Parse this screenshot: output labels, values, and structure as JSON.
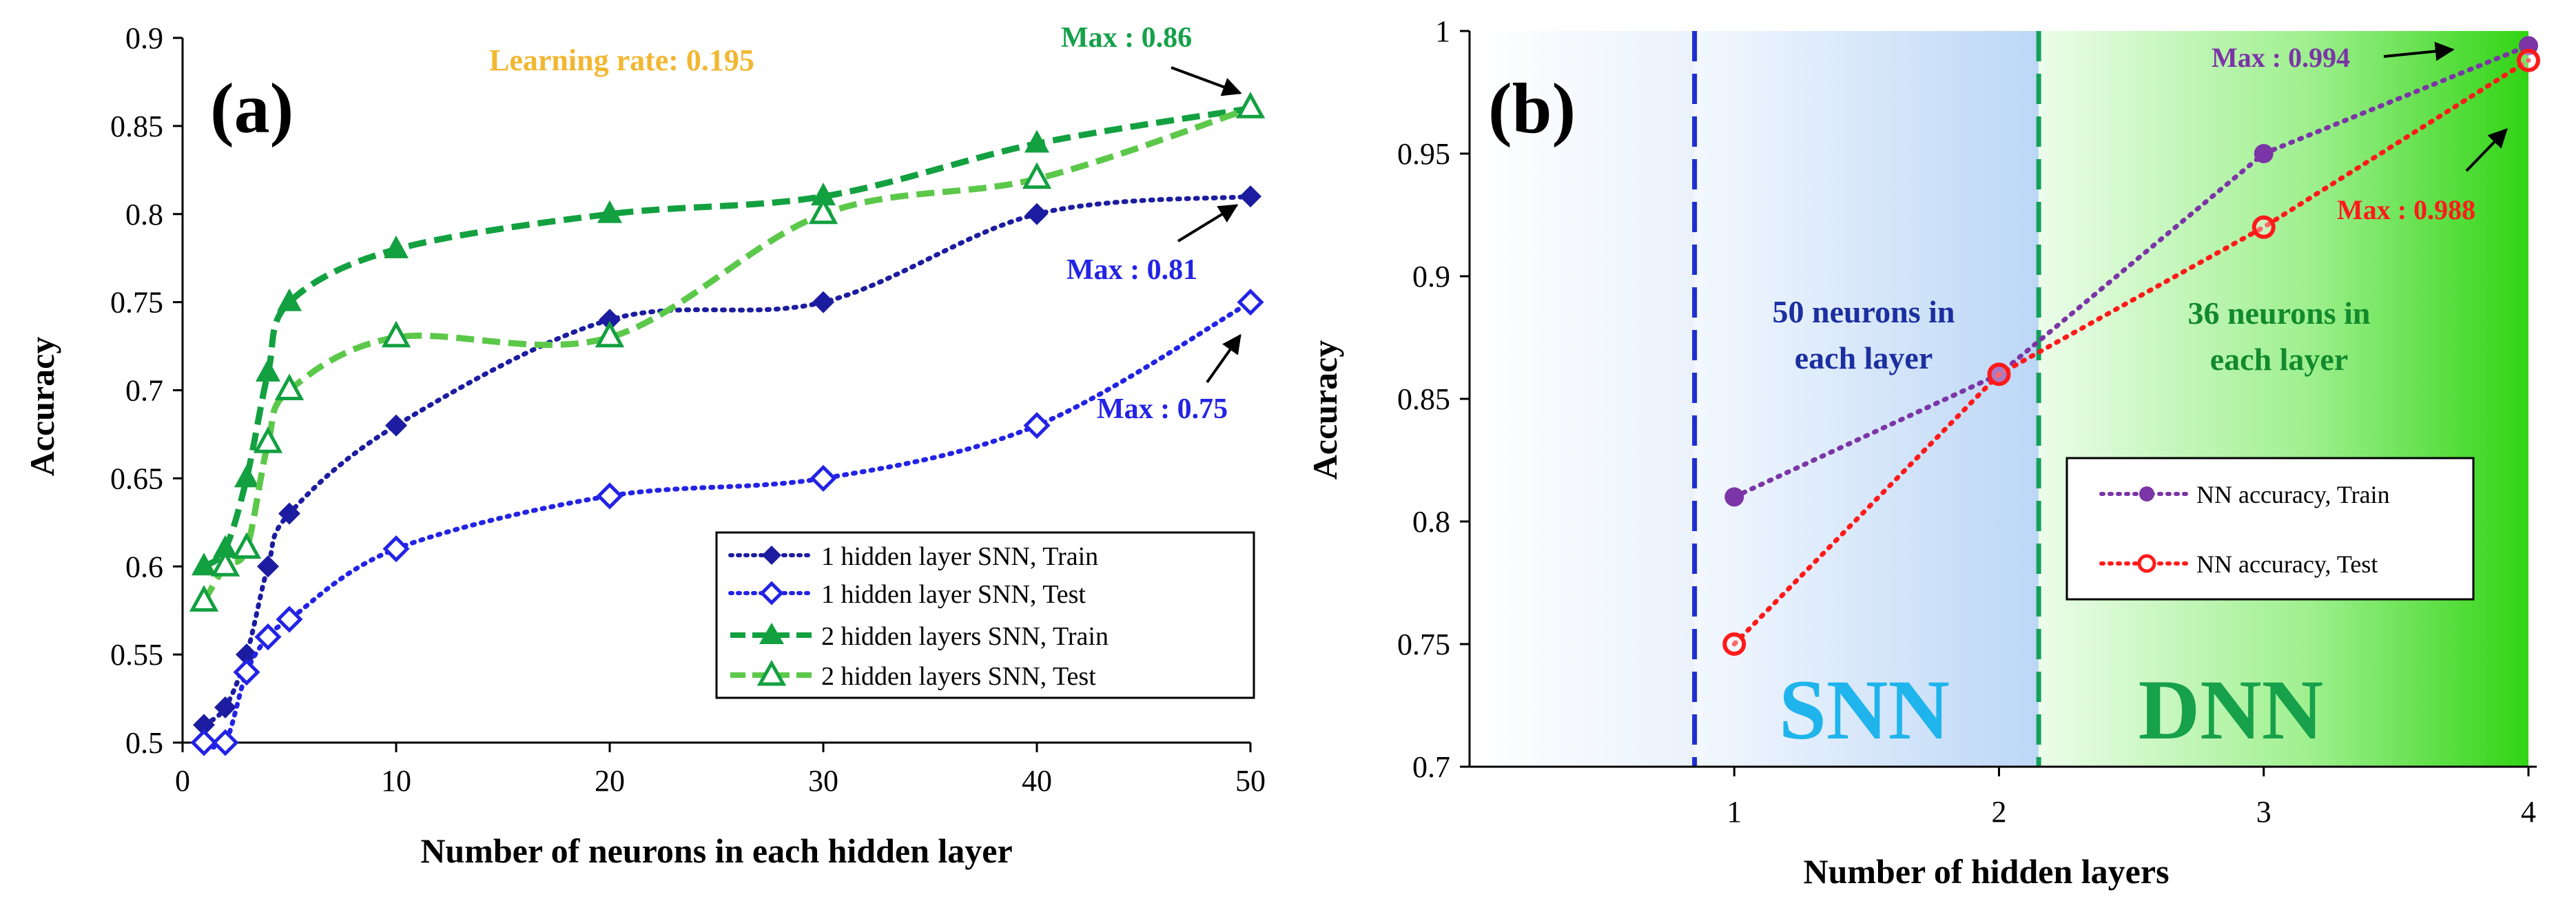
{
  "chart_data": [
    {
      "panel_label": "(a)",
      "type": "line",
      "xlabel": "Number of neurons in each hidden layer",
      "ylabel": "Accuracy",
      "xlim": [
        0,
        50
      ],
      "ylim": [
        0.5,
        0.9
      ],
      "xticks": [
        0,
        10,
        20,
        30,
        40,
        50
      ],
      "yticks": [
        0.5,
        0.55,
        0.6,
        0.65,
        0.7,
        0.75,
        0.8,
        0.85,
        0.9
      ],
      "x": [
        1,
        2,
        3,
        4,
        5,
        10,
        20,
        30,
        40,
        50
      ],
      "series": [
        {
          "name": "1 hidden layer SNN, Train",
          "values": [
            0.51,
            0.52,
            0.55,
            0.6,
            0.63,
            0.68,
            0.74,
            0.75,
            0.8,
            0.81
          ],
          "color": "#1c1ca0",
          "marker": "diamond-filled",
          "line": "dotted"
        },
        {
          "name": "1 hidden layer SNN, Test",
          "values": [
            0.5,
            0.5,
            0.54,
            0.56,
            0.57,
            0.61,
            0.64,
            0.65,
            0.68,
            0.75
          ],
          "color": "#2323e6",
          "marker": "diamond-open",
          "line": "dotted"
        },
        {
          "name": "2 hidden layers SNN, Train",
          "values": [
            0.6,
            0.61,
            0.65,
            0.71,
            0.75,
            0.78,
            0.8,
            0.81,
            0.84,
            0.86
          ],
          "color": "#13a040",
          "marker": "triangle-filled",
          "line": "dashed"
        },
        {
          "name": "2 hidden layers SNN, Test",
          "values": [
            0.58,
            0.6,
            0.61,
            0.67,
            0.7,
            0.73,
            0.73,
            0.8,
            0.82,
            0.86
          ],
          "color": "#5cc84a",
          "marker": "triangle-open",
          "line": "dashed"
        }
      ],
      "legend_position": "bottom-right",
      "annotations": {
        "learning_rate": "Learning rate: 0.195",
        "max_train_2": "Max : 0.86",
        "max_train_1": "Max : 0.81",
        "max_test_1": "Max : 0.75"
      }
    },
    {
      "panel_label": "(b)",
      "type": "line",
      "xlabel": "Number of hidden layers",
      "ylabel": "Accuracy",
      "xlim": [
        0,
        4
      ],
      "ylim": [
        0.7,
        1.0
      ],
      "xticks": [
        1,
        2,
        3,
        4
      ],
      "yticks": [
        0.7,
        0.75,
        0.8,
        0.85,
        0.9,
        0.95,
        1
      ],
      "x": [
        1,
        2,
        3,
        4
      ],
      "series": [
        {
          "name": "NN accuracy, Train",
          "values": [
            0.81,
            0.86,
            0.95,
            0.994
          ],
          "color": "#7b35a6",
          "marker": "circle-filled",
          "line": "dotted"
        },
        {
          "name": "NN accuracy, Test",
          "values": [
            0.75,
            0.86,
            0.92,
            0.988
          ],
          "color": "#ff1a1a",
          "marker": "circle-open",
          "line": "dotted"
        }
      ],
      "legend_position": "right",
      "regions": [
        {
          "label": "SNN",
          "note_line1": "50 neurons in",
          "note_line2": "each layer",
          "x_start": 0.85,
          "x_end": 2.15
        },
        {
          "label": "DNN",
          "note_line1": "36 neurons in",
          "note_line2": "each layer",
          "x_start": 2.15,
          "x_end": 4.0
        }
      ],
      "annotations": {
        "max_train": "Max : 0.994",
        "max_test": "Max : 0.988"
      }
    }
  ]
}
